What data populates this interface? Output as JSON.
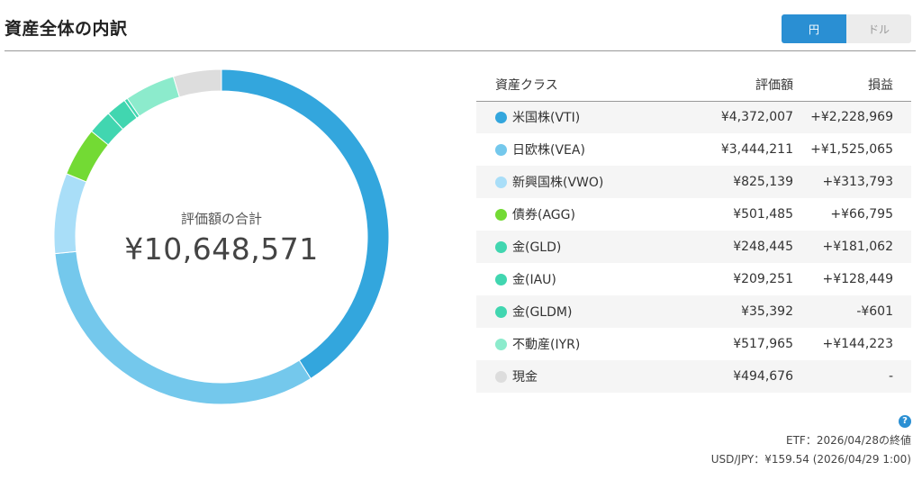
{
  "header": {
    "title": "資産全体の内訳",
    "currency_toggle": {
      "yen_label": "円",
      "usd_label": "ドル",
      "selected": "円"
    }
  },
  "donut": {
    "center_label": "評価額の合計",
    "total": "¥10,648,571"
  },
  "table": {
    "headers": {
      "asset_class": "資産クラス",
      "value": "評価額",
      "pl": "損益"
    },
    "rows": [
      {
        "name": "米国株(VTI)",
        "value": "¥4,372,007",
        "pl": "+¥2,228,969",
        "pl_sign": "pos",
        "color": "#33a6dd",
        "amount": 4372007
      },
      {
        "name": "日欧株(VEA)",
        "value": "¥3,444,211",
        "pl": "+¥1,525,065",
        "pl_sign": "pos",
        "color": "#74c8ec",
        "amount": 3444211
      },
      {
        "name": "新興国株(VWO)",
        "value": "¥825,139",
        "pl": "+¥313,793",
        "pl_sign": "pos",
        "color": "#a9def8",
        "amount": 825139
      },
      {
        "name": "債券(AGG)",
        "value": "¥501,485",
        "pl": "+¥66,795",
        "pl_sign": "pos",
        "color": "#73da34",
        "amount": 501485
      },
      {
        "name": "金(GLD)",
        "value": "¥248,445",
        "pl": "+¥181,062",
        "pl_sign": "pos",
        "color": "#41d6b0",
        "amount": 248445
      },
      {
        "name": "金(IAU)",
        "value": "¥209,251",
        "pl": "+¥128,449",
        "pl_sign": "pos",
        "color": "#41d6b0",
        "amount": 209251
      },
      {
        "name": "金(GLDM)",
        "value": "¥35,392",
        "pl": "-¥601",
        "pl_sign": "neg",
        "color": "#41d6b0",
        "amount": 35392
      },
      {
        "name": "不動産(IYR)",
        "value": "¥517,965",
        "pl": "+¥144,223",
        "pl_sign": "pos",
        "color": "#8cebcc",
        "amount": 517965
      },
      {
        "name": "現金",
        "value": "¥494,676",
        "pl": "-",
        "pl_sign": "neu",
        "color": "#dddddd",
        "amount": 494676
      }
    ]
  },
  "footer": {
    "help_icon": "question-circle-icon",
    "etf_note": "ETF：2026/04/28の終値",
    "fx_note": "USD/JPY：¥159.54 (2026/04/29 1:00)"
  }
}
